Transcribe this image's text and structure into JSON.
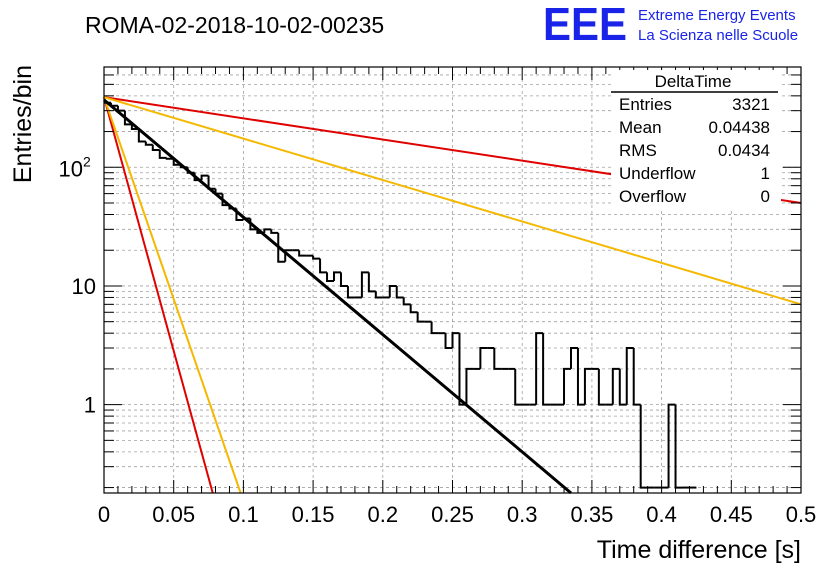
{
  "header": {
    "run_title": "ROMA-02-2018-10-02-00235",
    "logo_text": "EEE",
    "org_line1": "Extreme Energy Events",
    "org_line2": "La Scienza nelle Scuole"
  },
  "stats_box": {
    "title": "DeltaTime",
    "rows": [
      {
        "label": "Entries",
        "value": "3321"
      },
      {
        "label": "Mean",
        "value": "0.04438"
      },
      {
        "label": "RMS",
        "value": "0.0434"
      },
      {
        "label": "Underflow",
        "value": "1"
      },
      {
        "label": "Overflow",
        "value": "0"
      }
    ]
  },
  "colors": {
    "histogram": "#000000",
    "fit": "#000000",
    "red_curves": "#e00000",
    "orange_curves": "#f5b800",
    "grid": "#a0a0a0"
  },
  "chart_data": {
    "type": "line",
    "xlabel": "Time difference [s]",
    "ylabel": "Entries/bin",
    "xlim": [
      0,
      0.5
    ],
    "ylim": [
      0.18,
      700
    ],
    "yscale": "log",
    "grid": true,
    "x_ticks": [
      "0",
      "0.05",
      "0.1",
      "0.15",
      "0.2",
      "0.25",
      "0.3",
      "0.35",
      "0.4",
      "0.45",
      "0.5"
    ],
    "y_ticks": [
      "1",
      "10",
      "10"
    ],
    "y_tick_exponent": "2",
    "histogram": {
      "bin_width": 0.005,
      "counts": [
        350,
        330,
        300,
        230,
        210,
        165,
        155,
        140,
        120,
        118,
        105,
        100,
        90,
        78,
        85,
        66,
        60,
        48,
        45,
        36,
        37,
        30,
        28,
        30,
        28,
        16,
        20,
        20,
        18,
        18,
        17,
        13,
        11,
        13,
        10,
        8,
        8,
        13,
        9,
        8,
        8,
        10,
        8,
        7,
        6,
        5,
        5,
        4,
        4,
        3,
        4,
        1,
        2,
        2,
        3,
        3,
        2,
        2,
        2,
        1,
        1,
        1,
        4,
        1,
        1,
        1,
        2,
        3,
        1,
        2,
        2,
        1,
        1,
        2,
        1,
        3,
        1,
        0.2,
        0.2,
        0.2,
        0.2,
        1,
        0.2,
        0.2,
        0.2
      ]
    },
    "series": [
      {
        "style": "fit",
        "color": "#000000",
        "x": [
          0,
          0.335
        ],
        "y": [
          370,
          0.18
        ]
      },
      {
        "style": "limit",
        "color": "#e00000",
        "x": [
          0,
          0.5
        ],
        "y": [
          390,
          50
        ]
      },
      {
        "style": "limit",
        "color": "#e00000",
        "x": [
          0,
          0.078
        ],
        "y": [
          390,
          0.18
        ]
      },
      {
        "style": "limit",
        "color": "#f5b800",
        "x": [
          0,
          0.5
        ],
        "y": [
          390,
          7
        ]
      },
      {
        "style": "limit",
        "color": "#f5b800",
        "x": [
          0,
          0.098
        ],
        "y": [
          390,
          0.18
        ]
      }
    ]
  }
}
